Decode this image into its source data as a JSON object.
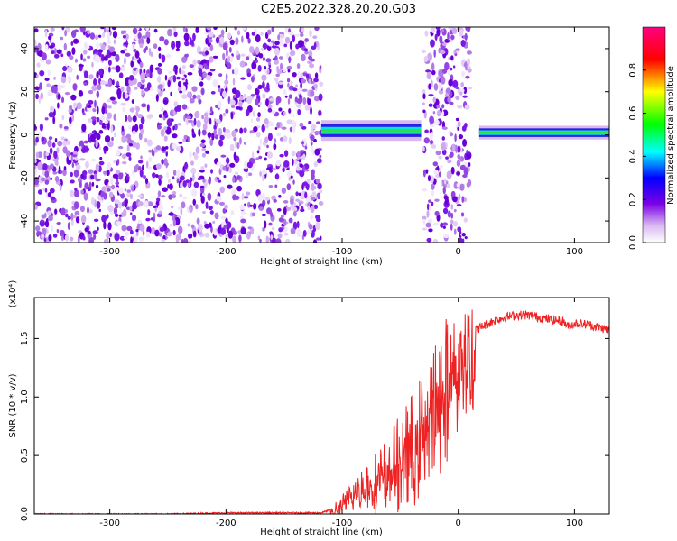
{
  "figure": {
    "title": "C2E5.2022.328.20.20.G03"
  },
  "chart_data": [
    {
      "type": "heatmap",
      "title": "C2E5.2022.328.20.20.G03",
      "xlabel": "Height of straight line (km)",
      "ylabel": "Frequency (Hz)",
      "xlim": [
        -365,
        130
      ],
      "ylim": [
        -50,
        50
      ],
      "xticks": [
        -300,
        -200,
        -100,
        0,
        100
      ],
      "yticks": [
        -40,
        -20,
        0,
        20,
        40
      ],
      "colorbar": {
        "label": "Normalized spectral amplitude",
        "range": [
          0,
          1
        ],
        "ticks": [
          "0.0",
          "0.2",
          "0.4",
          "0.6",
          "0.8"
        ],
        "colors": [
          "#ffffff",
          "#d9b8f0",
          "#7a00e6",
          "#0000ff",
          "#00ffff",
          "#00ff00",
          "#ffff00",
          "#ff0000",
          "#ff0080"
        ]
      },
      "regions": [
        {
          "name": "noise",
          "x_range": [
            -365,
            -118
          ],
          "f_range": [
            -50,
            50
          ]
        },
        {
          "name": "signal",
          "x_range": [
            -118,
            -32
          ],
          "f_center": 2,
          "f_width": 6
        },
        {
          "name": "noise",
          "x_range": [
            -30,
            10
          ],
          "f_range": [
            -50,
            50
          ]
        },
        {
          "name": "signal",
          "x_range": [
            18,
            130
          ],
          "f_center": 1,
          "f_width": 4
        }
      ],
      "grid": false
    },
    {
      "type": "line",
      "xlabel": "Height of straight line (km)",
      "ylabel": "SNR (10 * v/v)",
      "y_multiplier": "(x10⁴)",
      "xlim": [
        -365,
        130
      ],
      "ylim": [
        0,
        1.85
      ],
      "xticks": [
        -300,
        -200,
        -100,
        0,
        100
      ],
      "yticks": [
        "0.0",
        "0.5",
        "1.0",
        "1.5"
      ],
      "series": [
        {
          "color": "#ee2222",
          "x": [
            -365,
            -300,
            -250,
            -200,
            -150,
            -118,
            -105,
            -95,
            -85,
            -75,
            -65,
            -55,
            -45,
            -35,
            -25,
            -20,
            -15,
            -10,
            -5,
            0,
            10,
            20,
            30,
            40,
            50,
            60,
            70,
            80,
            90,
            95,
            100,
            110,
            120,
            130
          ],
          "y": [
            0.0,
            0.0,
            0.0,
            0.01,
            0.01,
            0.01,
            0.05,
            0.15,
            0.25,
            0.32,
            0.38,
            0.5,
            0.62,
            0.75,
            0.9,
            1.05,
            1.15,
            1.25,
            1.35,
            1.45,
            1.55,
            1.6,
            1.65,
            1.68,
            1.7,
            1.7,
            1.68,
            1.66,
            1.65,
            1.6,
            1.63,
            1.62,
            1.6,
            1.57
          ]
        }
      ],
      "grid": false
    }
  ]
}
